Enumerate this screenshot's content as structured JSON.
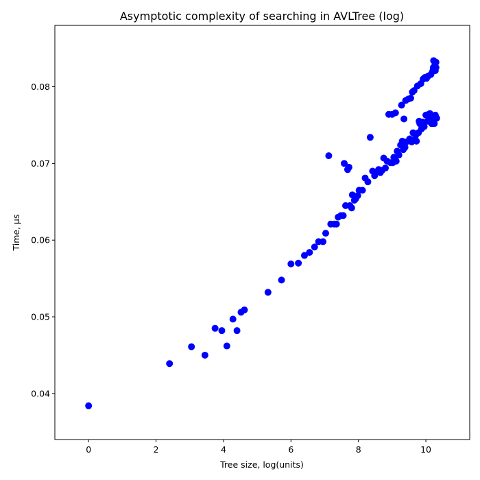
{
  "chart_data": {
    "type": "scatter",
    "title": "Asymptotic complexity of searching in AVLTree (log)",
    "xlabel": "Tree size, log(units)",
    "ylabel": "Time, µs",
    "xlim": [
      -1,
      11.3
    ],
    "ylim": [
      0.034,
      0.088
    ],
    "xticks": [
      0,
      2,
      4,
      6,
      8,
      10
    ],
    "xtick_labels": [
      "0",
      "2",
      "4",
      "6",
      "8",
      "10"
    ],
    "yticks": [
      0.04,
      0.05,
      0.06,
      0.07,
      0.08
    ],
    "ytick_labels": [
      "0.04",
      "0.05",
      "0.06",
      "0.07",
      "0.08"
    ],
    "grid": false,
    "marker_color": "#0000ff",
    "series": [
      {
        "points": [
          [
            0.0,
            0.0384
          ],
          [
            2.4,
            0.0439
          ],
          [
            3.05,
            0.0461
          ],
          [
            3.45,
            0.045
          ],
          [
            3.75,
            0.0485
          ],
          [
            3.95,
            0.0482
          ],
          [
            4.1,
            0.0462
          ],
          [
            4.28,
            0.0497
          ],
          [
            4.4,
            0.0482
          ],
          [
            4.52,
            0.0506
          ],
          [
            4.62,
            0.0509
          ],
          [
            5.32,
            0.0532
          ],
          [
            5.72,
            0.0548
          ],
          [
            6.0,
            0.0569
          ],
          [
            6.22,
            0.057
          ],
          [
            6.4,
            0.058
          ],
          [
            6.55,
            0.0584
          ],
          [
            6.7,
            0.0591
          ],
          [
            6.82,
            0.0598
          ],
          [
            6.95,
            0.0598
          ],
          [
            7.03,
            0.0609
          ],
          [
            7.12,
            0.071
          ],
          [
            7.18,
            0.0621
          ],
          [
            7.28,
            0.0621
          ],
          [
            7.35,
            0.0621
          ],
          [
            7.4,
            0.063
          ],
          [
            7.48,
            0.0632
          ],
          [
            7.55,
            0.0632
          ],
          [
            7.58,
            0.07
          ],
          [
            7.62,
            0.0645
          ],
          [
            7.68,
            0.0692
          ],
          [
            7.72,
            0.0695
          ],
          [
            7.75,
            0.0645
          ],
          [
            7.8,
            0.0642
          ],
          [
            7.82,
            0.0659
          ],
          [
            7.88,
            0.0652
          ],
          [
            7.92,
            0.0654
          ],
          [
            7.98,
            0.0658
          ],
          [
            8.02,
            0.0665
          ],
          [
            8.12,
            0.0665
          ],
          [
            8.2,
            0.0681
          ],
          [
            8.28,
            0.0676
          ],
          [
            8.35,
            0.0734
          ],
          [
            8.42,
            0.069
          ],
          [
            8.48,
            0.0684
          ],
          [
            8.55,
            0.0689
          ],
          [
            8.6,
            0.0692
          ],
          [
            8.65,
            0.0688
          ],
          [
            8.7,
            0.0691
          ],
          [
            8.75,
            0.0707
          ],
          [
            8.8,
            0.0694
          ],
          [
            8.85,
            0.0703
          ],
          [
            8.9,
            0.0764
          ],
          [
            8.95,
            0.0701
          ],
          [
            9.0,
            0.0764
          ],
          [
            9.02,
            0.0701
          ],
          [
            9.05,
            0.0708
          ],
          [
            9.1,
            0.0766
          ],
          [
            9.12,
            0.0703
          ],
          [
            9.15,
            0.0716
          ],
          [
            9.2,
            0.0711
          ],
          [
            9.25,
            0.0724
          ],
          [
            9.28,
            0.0776
          ],
          [
            9.3,
            0.0729
          ],
          [
            9.33,
            0.0718
          ],
          [
            9.35,
            0.0758
          ],
          [
            9.38,
            0.0721
          ],
          [
            9.4,
            0.0782
          ],
          [
            9.42,
            0.0728
          ],
          [
            9.48,
            0.0784
          ],
          [
            9.52,
            0.0732
          ],
          [
            9.55,
            0.0785
          ],
          [
            9.58,
            0.0728
          ],
          [
            9.6,
            0.0793
          ],
          [
            9.62,
            0.074
          ],
          [
            9.65,
            0.0795
          ],
          [
            9.68,
            0.0732
          ],
          [
            9.7,
            0.0737
          ],
          [
            9.72,
            0.0729
          ],
          [
            9.75,
            0.0801
          ],
          [
            9.78,
            0.074
          ],
          [
            9.8,
            0.0755
          ],
          [
            9.82,
            0.0752
          ],
          [
            9.85,
            0.0804
          ],
          [
            9.87,
            0.0745
          ],
          [
            9.9,
            0.0754
          ],
          [
            9.92,
            0.081
          ],
          [
            9.95,
            0.0748
          ],
          [
            9.97,
            0.0812
          ],
          [
            10.0,
            0.0763
          ],
          [
            10.02,
            0.0811
          ],
          [
            10.05,
            0.0755
          ],
          [
            10.07,
            0.0814
          ],
          [
            10.1,
            0.076
          ],
          [
            10.12,
            0.0765
          ],
          [
            10.15,
            0.0816
          ],
          [
            10.17,
            0.0752
          ],
          [
            10.18,
            0.0762
          ],
          [
            10.2,
            0.082
          ],
          [
            10.22,
            0.0825
          ],
          [
            10.23,
            0.0834
          ],
          [
            10.25,
            0.0752
          ],
          [
            10.27,
            0.0829
          ],
          [
            10.28,
            0.0763
          ],
          [
            10.3,
            0.0832
          ],
          [
            10.3,
            0.0825
          ],
          [
            10.32,
            0.0759
          ],
          [
            10.08,
            0.0764
          ],
          [
            10.18,
            0.0758
          ],
          [
            10.28,
            0.0821
          ]
        ]
      }
    ]
  }
}
